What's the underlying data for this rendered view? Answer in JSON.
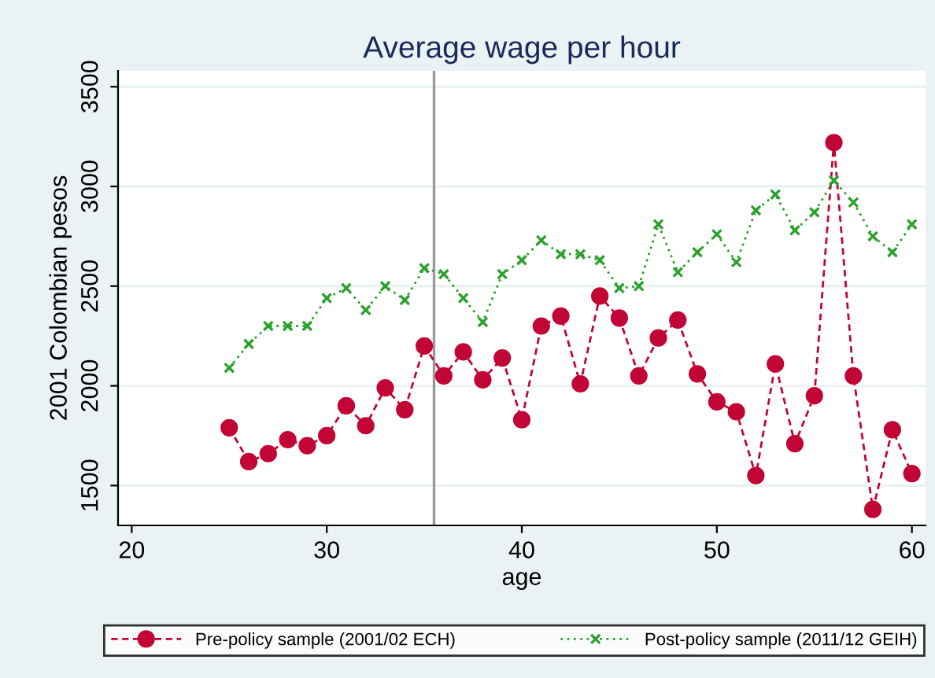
{
  "chart_data": {
    "type": "line",
    "title": "Average wage per hour",
    "xlabel": "age",
    "ylabel": "2001 Colombian pesos",
    "x": [
      25,
      26,
      27,
      28,
      29,
      30,
      31,
      32,
      33,
      34,
      35,
      36,
      37,
      38,
      39,
      40,
      41,
      42,
      43,
      44,
      45,
      46,
      47,
      48,
      49,
      50,
      51,
      52,
      53,
      54,
      55,
      56,
      57,
      58,
      59,
      60
    ],
    "series": [
      {
        "name": "Pre-policy sample (2001/02 ECH)",
        "color": "#c10534",
        "marker": "circle",
        "line_style": "dashed",
        "values": [
          1790,
          1620,
          1660,
          1730,
          1700,
          1750,
          1900,
          1800,
          1990,
          1880,
          2200,
          2050,
          2170,
          2030,
          2140,
          1830,
          2300,
          2350,
          2010,
          2450,
          2340,
          2050,
          2240,
          2330,
          2060,
          1920,
          1870,
          1550,
          2110,
          1710,
          1950,
          3220,
          2050,
          1380,
          1780,
          1560
        ]
      },
      {
        "name": "Post-policy sample (2011/12 GEIH)",
        "color": "#2ca02c",
        "marker": "cross",
        "line_style": "dotted",
        "values": [
          2090,
          2210,
          2300,
          2300,
          2300,
          2440,
          2490,
          2380,
          2500,
          2430,
          2590,
          2560,
          2440,
          2320,
          2560,
          2630,
          2730,
          2660,
          2660,
          2630,
          2490,
          2500,
          2810,
          2570,
          2670,
          2760,
          2620,
          2880,
          2960,
          2780,
          2870,
          3030,
          2920,
          2750,
          2670,
          2810
        ]
      }
    ],
    "xlim": [
      19.3,
      60.7
    ],
    "ylim": [
      1300,
      3580
    ],
    "xticks": [
      20,
      30,
      40,
      50,
      60
    ],
    "yticks": [
      1500,
      2000,
      2500,
      3000,
      3500
    ],
    "grid": "y",
    "legend": "bottom",
    "ref_lines": [
      {
        "axis": "x",
        "value": 35.5,
        "color": "#999999",
        "line_style": "solid"
      }
    ]
  }
}
